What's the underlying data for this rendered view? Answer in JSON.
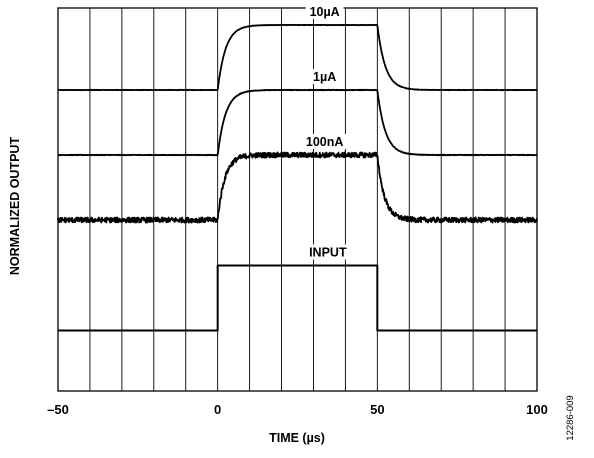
{
  "chart_data": {
    "type": "line",
    "xlabel": "TIME (µs)",
    "ylabel": "NORMALIZED OUTPUT",
    "xlim": [
      -50,
      100
    ],
    "xticks": [
      -50,
      0,
      50,
      100
    ],
    "x_tick_labels": [
      "–50",
      "0",
      "50",
      "100"
    ],
    "x_gridlines": [
      -40,
      -30,
      -20,
      -10,
      0,
      10,
      20,
      30,
      40,
      50,
      60,
      70,
      80,
      90
    ],
    "grid": true,
    "y_ticks_labeled": false,
    "series": [
      {
        "name": "10µA",
        "baseline": 3,
        "high": 4,
        "rise_tau_us": 2.5,
        "fall_tau_us": 2.5,
        "noise": 0.003,
        "label_x": 33.5
      },
      {
        "name": "1µA",
        "baseline": 2,
        "high": 3,
        "rise_tau_us": 2.5,
        "fall_tau_us": 2.5,
        "noise": 0.004,
        "label_x": 33.5
      },
      {
        "name": "100nA",
        "baseline": 1,
        "high": 2,
        "rise_tau_us": 2.2,
        "fall_tau_us": 2.2,
        "noise": 0.04,
        "label_x": 33.5
      },
      {
        "name": "INPUT",
        "baseline": -0.7,
        "high": 0.3,
        "rise_tau_us": 0,
        "fall_tau_us": 0,
        "noise": 0.004,
        "label_x": 34.5
      }
    ],
    "pulse": {
      "start": 0,
      "end": 50
    },
    "figure_id": "12286-009"
  },
  "colors": {
    "trace": "#000000",
    "grid": "#000000",
    "background": "#ffffff"
  }
}
